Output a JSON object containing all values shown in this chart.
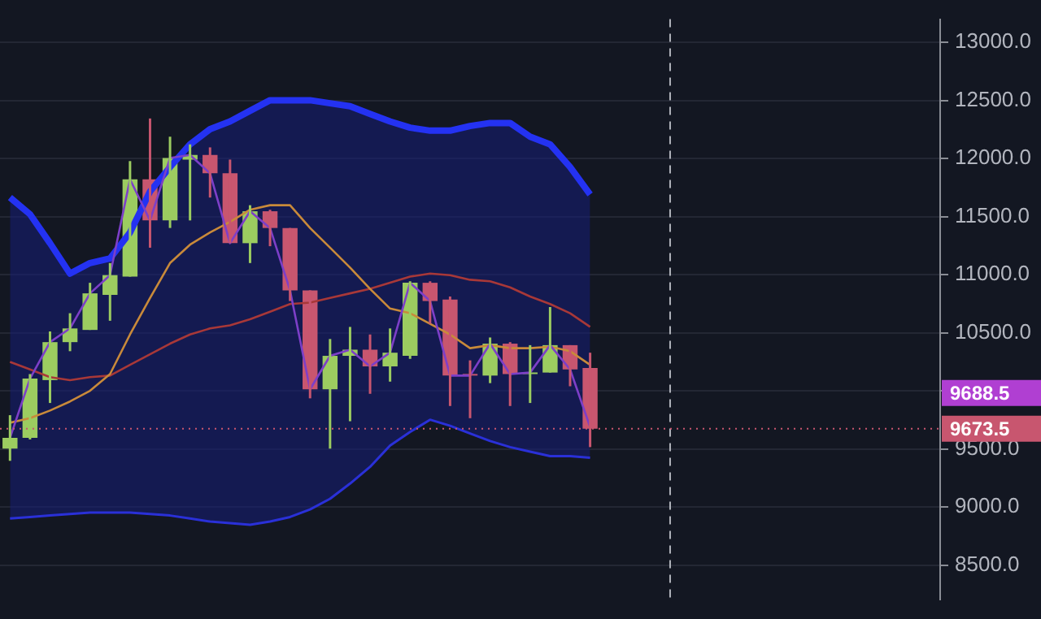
{
  "chart_data": {
    "type": "candlestick",
    "categories": [
      null,
      null,
      null,
      null,
      null,
      null,
      null,
      null,
      null,
      null,
      null,
      null,
      null,
      null,
      null,
      null,
      null,
      null,
      null,
      null,
      null,
      null,
      null,
      null,
      null,
      null,
      null,
      null,
      null,
      null,
      null,
      null,
      null,
      null,
      null,
      null,
      null,
      null,
      null,
      null,
      null,
      null,
      null,
      null,
      null,
      null,
      null
    ],
    "ohlc": [
      [
        9502,
        9790,
        9397,
        9594
      ],
      [
        9594,
        10144,
        9581,
        10105
      ],
      [
        10092,
        10511,
        9895,
        10419
      ],
      [
        10419,
        10668,
        10341,
        10537
      ],
      [
        10524,
        10930,
        10524,
        10839
      ],
      [
        10826,
        11100,
        10603,
        10996
      ],
      [
        10983,
        11978,
        10983,
        11821
      ],
      [
        11821,
        12345,
        11232,
        11467
      ],
      [
        11467,
        12188,
        11402,
        12004
      ],
      [
        11991,
        12122,
        11467,
        12031
      ],
      [
        12031,
        12096,
        11664,
        11873
      ],
      [
        11873,
        11991,
        11271,
        11271
      ],
      [
        11271,
        11598,
        11100,
        11546
      ],
      [
        11546,
        11559,
        11245,
        11402
      ],
      [
        11402,
        11402,
        10773,
        10865
      ],
      [
        10865,
        10865,
        9935,
        10013
      ],
      [
        10013,
        10446,
        9502,
        10301
      ],
      [
        10301,
        10550,
        9738,
        10354
      ],
      [
        10354,
        10485,
        9974,
        10210
      ],
      [
        10210,
        10537,
        10079,
        10328
      ],
      [
        10301,
        10943,
        10275,
        10930
      ],
      [
        10930,
        10943,
        10577,
        10773
      ],
      [
        10786,
        10812,
        9869,
        10131
      ],
      [
        10144,
        10262,
        9764,
        10131
      ],
      [
        10131,
        10459,
        10066,
        10406
      ],
      [
        10406,
        10419,
        9869,
        10144
      ],
      [
        10144,
        10393,
        9895,
        10157
      ],
      [
        10157,
        10721,
        10157,
        10393
      ],
      [
        10393,
        10393,
        10039,
        10184
      ],
      [
        10197,
        10328,
        9515,
        9673.5
      ],
      null,
      null,
      null,
      null,
      null,
      null,
      null,
      null,
      null,
      null,
      null,
      null,
      null,
      null,
      null,
      null,
      null
    ],
    "colors": [
      "#9ccc60",
      "#9ccc60",
      "#9ccc60",
      "#9ccc60",
      "#9ccc60",
      "#9ccc60",
      "#9ccc60",
      "#c8566f",
      "#9ccc60",
      "#9ccc60",
      "#c8566f",
      "#c8566f",
      "#9ccc60",
      "#c8566f",
      "#c8566f",
      "#c8566f",
      "#9ccc60",
      "#9ccc60",
      "#c8566f",
      "#9ccc60",
      "#9ccc60",
      "#c8566f",
      "#c8566f",
      "#c8566f",
      "#9ccc60",
      "#c8566f",
      "#9ccc60",
      "#9ccc60",
      "#c8566f",
      "#c8566f",
      null,
      null,
      null,
      null,
      null,
      null,
      null,
      null,
      null,
      null,
      null,
      null,
      null,
      null,
      null,
      null,
      null
    ],
    "series": [
      {
        "type": "line",
        "color": "#a83838",
        "values": [
          10249,
          10184,
          10118,
          10092,
          10118,
          10131,
          10223,
          10315,
          10406,
          10485,
          10537,
          10563,
          10616,
          10681,
          10747,
          10760,
          10799,
          10839,
          10878,
          10930,
          10983,
          11009,
          10996,
          10956,
          10943,
          10891,
          10812,
          10747,
          10668,
          10550,
          null,
          null,
          null,
          null,
          null,
          null,
          null,
          null,
          null,
          null,
          null,
          null,
          null,
          null,
          null,
          null,
          null
        ],
        "upper": [
          11664,
          11520,
          11271,
          11009,
          11100,
          11140,
          11363,
          11716,
          11926,
          12122,
          12253,
          12319,
          12411,
          12502,
          12502,
          12502,
          12476,
          12450,
          12384,
          12319,
          12266,
          12240,
          12240,
          12280,
          12306,
          12306,
          12188,
          12122,
          11926,
          11690,
          null,
          null,
          null,
          null,
          null,
          null,
          null,
          null,
          null,
          null,
          null,
          null,
          null,
          null,
          null,
          null,
          null
        ],
        "lower": [
          8900,
          8913,
          8926,
          8939,
          8952,
          8952,
          8952,
          8939,
          8926,
          8900,
          8874,
          8860,
          8847,
          8874,
          8913,
          8978,
          9070,
          9201,
          9345,
          9529,
          9646,
          9751,
          9699,
          9633,
          9568,
          9515,
          9476,
          9437,
          9437,
          9424,
          null,
          null,
          null,
          null,
          null,
          null,
          null,
          null,
          null,
          null,
          null,
          null,
          null,
          null,
          null,
          null,
          null
        ]
      },
      {
        "type": "line",
        "color": "#2432f2",
        "values": [
          11664,
          11520,
          11271,
          11009,
          11100,
          11140,
          11363,
          11716,
          11926,
          12122,
          12253,
          12319,
          12411,
          12502,
          12502,
          12502,
          12476,
          12450,
          12384,
          12319,
          12266,
          12240,
          12240,
          12280,
          12306,
          12306,
          12188,
          12122,
          11926,
          11690,
          null,
          null,
          null,
          null,
          null,
          null,
          null,
          null,
          null,
          null,
          null,
          null,
          null,
          null,
          null,
          null,
          null
        ]
      },
      {
        "type": "line",
        "color": "#2a30d8",
        "values": [
          8900,
          8913,
          8926,
          8939,
          8952,
          8952,
          8952,
          8939,
          8926,
          8900,
          8874,
          8860,
          8847,
          8874,
          8913,
          8978,
          9070,
          9201,
          9345,
          9529,
          9646,
          9751,
          9699,
          9633,
          9568,
          9515,
          9476,
          9437,
          9437,
          9424,
          null,
          null,
          null,
          null,
          null,
          null,
          null,
          null,
          null,
          null,
          null,
          null,
          null,
          null,
          null,
          null,
          null
        ]
      },
      {
        "type": "line",
        "color": "#c98a3a",
        "values": [
          9725,
          9764,
          9830,
          9908,
          10000,
          10144,
          10485,
          10799,
          11100,
          11258,
          11363,
          11454,
          11559,
          11598,
          11598,
          11402,
          11232,
          11061,
          10878,
          10708,
          10668,
          10577,
          10485,
          10367,
          10393,
          10367,
          10367,
          10380,
          10341,
          10223,
          null,
          null,
          null,
          null,
          null,
          null,
          null,
          null,
          null,
          null,
          null,
          null,
          null,
          null,
          null,
          null,
          null
        ]
      },
      {
        "type": "line",
        "color": "#7d3fc8",
        "values": [
          9594,
          10105,
          10419,
          10537,
          10839,
          10996,
          11821,
          11467,
          12004,
          12031,
          11873,
          11271,
          11546,
          11402,
          10865,
          10013,
          10301,
          10354,
          10210,
          10328,
          10930,
          10773,
          10131,
          10131,
          10406,
          10144,
          10157,
          10393,
          10184,
          9688.5,
          null,
          null,
          null,
          null,
          null,
          null,
          null,
          null,
          null,
          null,
          null,
          null,
          null,
          null,
          null,
          null,
          null
        ]
      }
    ],
    "ylim": [
      8200,
      13200
    ],
    "yticks": [
      {
        "value": 8500,
        "label": "8500.0"
      },
      {
        "value": 9000,
        "label": "9000.0"
      },
      {
        "value": 9500,
        "label": "9500.0"
      },
      {
        "value": 10000,
        "label": null
      },
      {
        "value": 10500,
        "label": "10500.0"
      },
      {
        "value": 11000,
        "label": "11000.0"
      },
      {
        "value": 11500,
        "label": "11500.0"
      },
      {
        "value": 12000,
        "label": "12000.0"
      },
      {
        "value": 12500,
        "label": "12500.0"
      },
      {
        "value": 13000,
        "label": "13000.0"
      }
    ],
    "ref_lines": [
      {
        "axis": "y",
        "value": 9673.5,
        "label": "9673.5",
        "color": "#c8566f",
        "line_style": "dotted"
      }
    ],
    "annotations": [
      "9688.5"
    ],
    "grid": "y",
    "legend": false,
    "tick_labels": "y",
    "marker": "none"
  }
}
